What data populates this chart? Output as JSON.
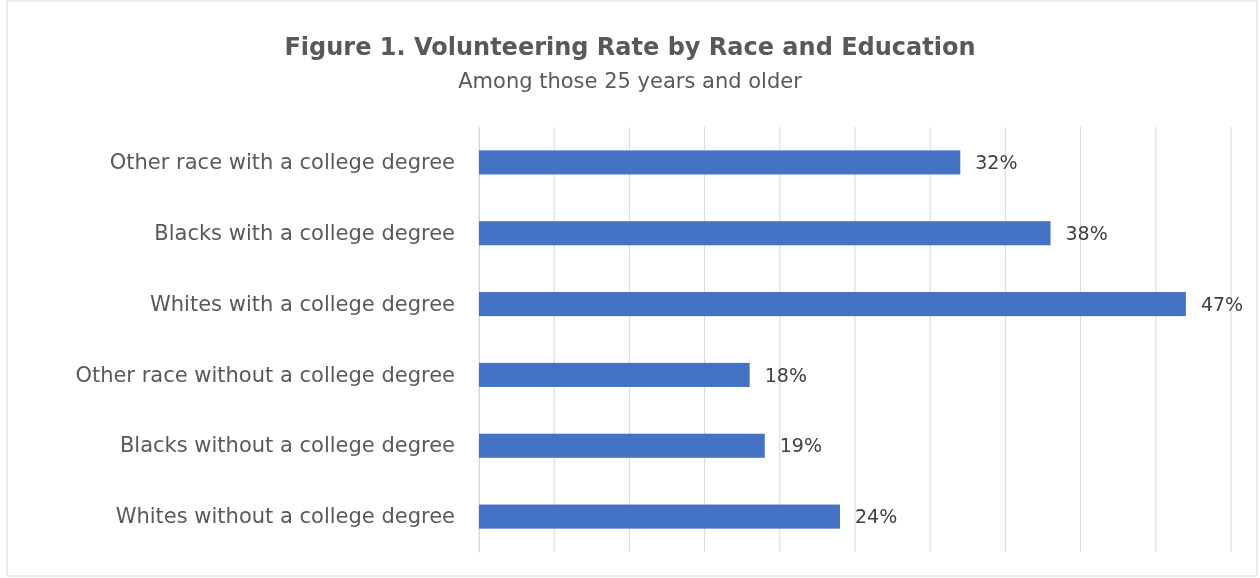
{
  "chart_data": {
    "type": "bar",
    "orientation": "horizontal",
    "title": "Figure 1. Volunteering Rate by Race and Education",
    "subtitle": "Among those 25 years and older",
    "categories": [
      "Other race with a college degree",
      "Blacks with a college degree",
      "Whites with a college degree",
      "Other race without a college degree",
      "Blacks without a college degree",
      "Whites without a college degree"
    ],
    "values": [
      32,
      38,
      47,
      18,
      19,
      24
    ],
    "value_labels": [
      "32%",
      "38%",
      "47%",
      "18%",
      "19%",
      "24%"
    ],
    "color": "#4472c4",
    "xlim": [
      0,
      50
    ],
    "xticks": [
      {
        "value": 0,
        "label": null
      },
      {
        "value": 5,
        "label": null
      },
      {
        "value": 10,
        "label": null
      },
      {
        "value": 15,
        "label": null
      },
      {
        "value": 20,
        "label": null
      },
      {
        "value": 25,
        "label": null
      },
      {
        "value": 30,
        "label": null
      },
      {
        "value": 35,
        "label": null
      },
      {
        "value": 40,
        "label": null
      },
      {
        "value": 45,
        "label": null
      },
      {
        "value": 50,
        "label": null
      }
    ],
    "grid": "x",
    "tick_labels": "y"
  }
}
